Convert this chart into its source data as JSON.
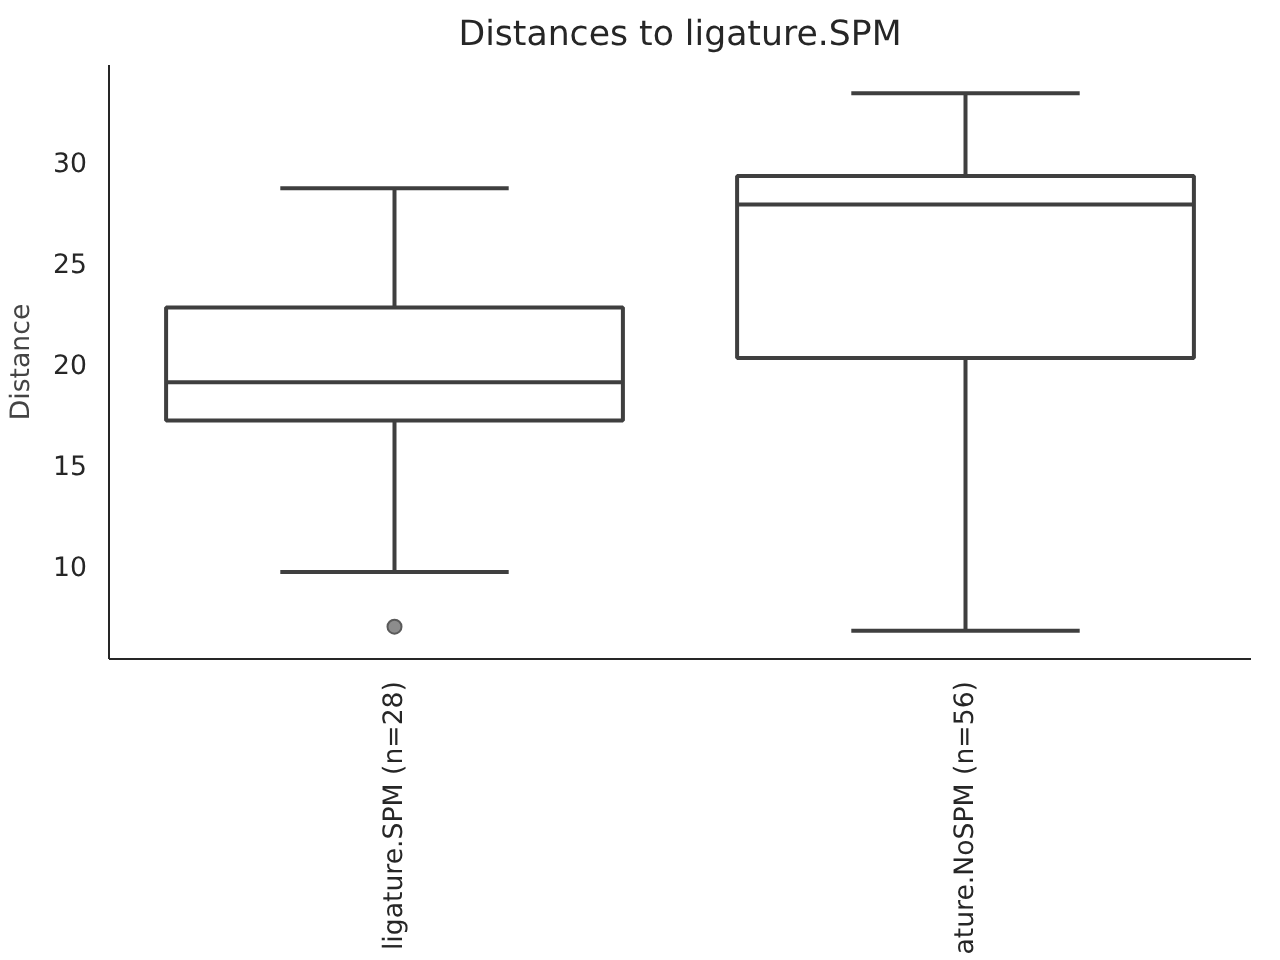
{
  "chart_data": {
    "type": "box",
    "title": "Distances to ligature.SPM",
    "ylabel": "Distance",
    "categories": [
      "ligature.SPM (n=28)",
      "ature.NoSPM (n=56)"
    ],
    "ylim": [
      5.4,
      34.8
    ],
    "yticks": [
      10,
      15,
      20,
      25,
      30
    ],
    "grid": false,
    "series": [
      {
        "color": "#3f3f3f",
        "boxes": [
          {
            "low": 9.7,
            "q1": 17.2,
            "median": 19.1,
            "q3": 22.8,
            "high": 28.7,
            "outliers": [
              7.0
            ]
          },
          {
            "low": 6.8,
            "q1": 20.3,
            "median": 27.9,
            "q3": 29.3,
            "high": 33.4
          }
        ]
      }
    ]
  }
}
